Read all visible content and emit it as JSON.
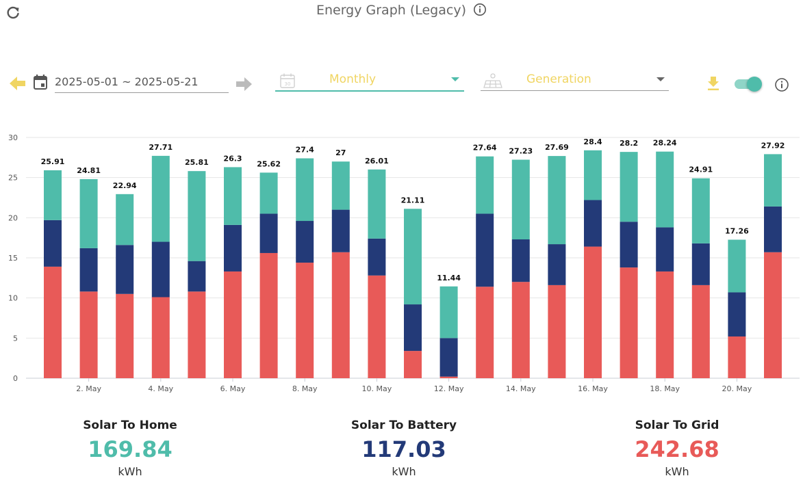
{
  "header": {
    "title": "Energy Graph (Legacy)"
  },
  "controls": {
    "date_range": "2025-05-01 ~ 2025-05-21",
    "period": "Monthly",
    "type": "Generation",
    "toggle_on": true
  },
  "icons": {
    "refresh": "refresh-icon",
    "info": "info-icon",
    "prev": "arrow-left-icon",
    "next": "arrow-right-icon",
    "calendar": "calendar-icon",
    "period": "calendar-30-icon",
    "type": "solar-panel-icon",
    "download": "download-icon"
  },
  "colors": {
    "home": "#4fbcaa",
    "battery": "#233a78",
    "grid": "#e85a58",
    "accent": "#f0d562"
  },
  "summary": {
    "home": {
      "label": "Solar To Home",
      "value": "169.84",
      "unit": "kWh"
    },
    "battery": {
      "label": "Solar To Battery",
      "value": "117.03",
      "unit": "kWh"
    },
    "grid": {
      "label": "Solar To Grid",
      "value": "242.68",
      "unit": "kWh"
    }
  },
  "chart_data": {
    "type": "bar",
    "stacked": true,
    "grid": true,
    "ylim": [
      0,
      30
    ],
    "yticks": [
      0,
      5,
      10,
      15,
      20,
      25,
      30
    ],
    "categories": [
      "1. May",
      "2. May",
      "3. May",
      "4. May",
      "5. May",
      "6. May",
      "7. May",
      "8. May",
      "9. May",
      "10. May",
      "11. May",
      "12. May",
      "13. May",
      "14. May",
      "15. May",
      "16. May",
      "17. May",
      "18. May",
      "19. May",
      "20. May",
      "21. May"
    ],
    "xtick_labels": [
      "",
      "2. May",
      "",
      "4. May",
      "",
      "6. May",
      "",
      "8. May",
      "",
      "10. May",
      "",
      "12. May",
      "",
      "14. May",
      "",
      "16. May",
      "",
      "18. May",
      "",
      "20. May",
      ""
    ],
    "totals": [
      "25.91",
      "24.81",
      "22.94",
      "27.71",
      "25.81",
      "26.3",
      "25.62",
      "27.4",
      "27",
      "26.01",
      "21.11",
      "11.44",
      "27.64",
      "27.23",
      "27.69",
      "28.4",
      "28.2",
      "28.24",
      "24.91",
      "17.26",
      "27.92"
    ],
    "series": [
      {
        "name": "Solar To Grid",
        "color": "#e85a58",
        "values": [
          13.9,
          10.8,
          10.5,
          10.1,
          10.8,
          13.3,
          15.6,
          14.4,
          15.7,
          12.8,
          3.4,
          0.2,
          11.4,
          12.0,
          11.6,
          16.4,
          13.8,
          13.3,
          11.6,
          5.2,
          15.7
        ]
      },
      {
        "name": "Solar To Battery",
        "color": "#233a78",
        "values": [
          5.8,
          5.4,
          6.1,
          6.9,
          3.8,
          5.8,
          4.9,
          5.2,
          5.3,
          4.6,
          5.8,
          4.8,
          9.1,
          5.3,
          5.1,
          5.8,
          5.7,
          5.5,
          5.2,
          5.5,
          5.7
        ]
      },
      {
        "name": "Solar To Home",
        "color": "#4fbcaa",
        "values": [
          6.21,
          8.61,
          6.34,
          10.71,
          11.21,
          7.2,
          5.12,
          7.8,
          6.0,
          8.61,
          11.91,
          6.44,
          7.14,
          9.93,
          10.99,
          6.2,
          8.7,
          9.44,
          8.11,
          6.56,
          6.52
        ]
      }
    ]
  }
}
